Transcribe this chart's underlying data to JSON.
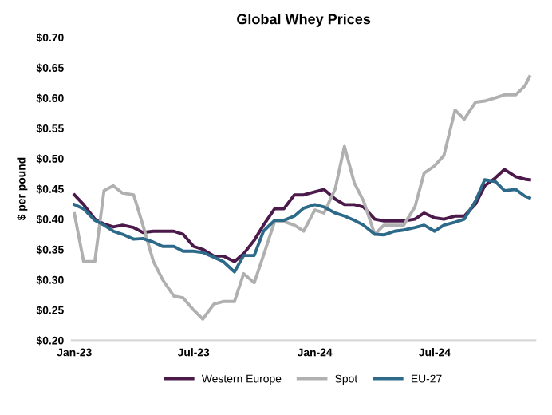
{
  "chart_data": {
    "type": "line",
    "title": "Global Whey Prices",
    "ylabel": "$ per pound",
    "x": [
      "2023-01-01",
      "2023-01-15",
      "2023-02-01",
      "2023-02-15",
      "2023-03-01",
      "2023-03-15",
      "2023-04-01",
      "2023-04-15",
      "2023-05-01",
      "2023-05-15",
      "2023-06-01",
      "2023-06-15",
      "2023-07-01",
      "2023-07-15",
      "2023-08-01",
      "2023-08-15",
      "2023-09-01",
      "2023-09-15",
      "2023-10-01",
      "2023-10-15",
      "2023-11-01",
      "2023-11-15",
      "2023-12-01",
      "2023-12-15",
      "2024-01-01",
      "2024-01-15",
      "2024-02-01",
      "2024-02-15",
      "2024-03-01",
      "2024-03-15",
      "2024-04-01",
      "2024-04-15",
      "2024-05-01",
      "2024-05-15",
      "2024-06-01",
      "2024-06-15",
      "2024-07-01",
      "2024-07-15",
      "2024-08-01",
      "2024-08-15",
      "2024-09-01",
      "2024-09-15",
      "2024-10-01",
      "2024-10-15",
      "2024-11-01",
      "2024-11-15",
      "2024-11-22"
    ],
    "series": [
      {
        "name": "Western Europe",
        "color": "#4b1a4a",
        "values": [
          0.44,
          0.424,
          0.4,
          0.392,
          0.387,
          0.39,
          0.386,
          0.378,
          0.38,
          0.38,
          0.38,
          0.375,
          0.355,
          0.35,
          0.339,
          0.339,
          0.33,
          0.343,
          0.365,
          0.39,
          0.417,
          0.417,
          0.44,
          0.44,
          0.445,
          0.449,
          0.433,
          0.424,
          0.424,
          0.42,
          0.4,
          0.397,
          0.397,
          0.397,
          0.4,
          0.41,
          0.402,
          0.4,
          0.405,
          0.405,
          0.425,
          0.455,
          0.468,
          0.482,
          0.47,
          0.466,
          0.465
        ]
      },
      {
        "name": "Spot",
        "color": "#b0b0b0",
        "values": [
          0.409,
          0.33,
          0.33,
          0.447,
          0.455,
          0.443,
          0.44,
          0.39,
          0.33,
          0.3,
          0.273,
          0.27,
          0.25,
          0.235,
          0.26,
          0.264,
          0.264,
          0.31,
          0.295,
          0.34,
          0.396,
          0.396,
          0.39,
          0.38,
          0.415,
          0.41,
          0.45,
          0.52,
          0.46,
          0.43,
          0.375,
          0.39,
          0.39,
          0.39,
          0.42,
          0.476,
          0.488,
          0.505,
          0.58,
          0.565,
          0.593,
          0.595,
          0.6,
          0.605,
          0.605,
          0.62,
          0.635
        ]
      },
      {
        "name": "EU-27",
        "color": "#2d6a8a",
        "values": [
          0.424,
          0.417,
          0.398,
          0.39,
          0.38,
          0.375,
          0.367,
          0.368,
          0.362,
          0.355,
          0.355,
          0.347,
          0.347,
          0.345,
          0.337,
          0.33,
          0.313,
          0.34,
          0.34,
          0.38,
          0.398,
          0.398,
          0.405,
          0.418,
          0.424,
          0.42,
          0.41,
          0.405,
          0.398,
          0.39,
          0.375,
          0.374,
          0.38,
          0.382,
          0.386,
          0.39,
          0.38,
          0.39,
          0.395,
          0.4,
          0.43,
          0.465,
          0.462,
          0.447,
          0.449,
          0.438,
          0.435
        ]
      }
    ],
    "xlim": [
      "2022-12-28",
      "2024-12-01"
    ],
    "xticks": [
      {
        "value": "2023-01-01",
        "label": "Jan-23"
      },
      {
        "value": "2023-07-01",
        "label": "Jul-23"
      },
      {
        "value": "2024-01-01",
        "label": "Jan-24"
      },
      {
        "value": "2024-07-01",
        "label": "Jul-24"
      }
    ],
    "ylim": [
      0.2,
      0.7
    ],
    "yticks": [
      {
        "value": 0.2,
        "label": "$0.20"
      },
      {
        "value": 0.25,
        "label": "$0.25"
      },
      {
        "value": 0.3,
        "label": "$0.30"
      },
      {
        "value": 0.35,
        "label": "$0.35"
      },
      {
        "value": 0.4,
        "label": "$0.40"
      },
      {
        "value": 0.45,
        "label": "$0.45"
      },
      {
        "value": 0.5,
        "label": "$0.50"
      },
      {
        "value": 0.55,
        "label": "$0.55"
      },
      {
        "value": 0.6,
        "label": "$0.60"
      },
      {
        "value": 0.65,
        "label": "$0.65"
      },
      {
        "value": 0.7,
        "label": "$0.70"
      }
    ],
    "grid": false,
    "legend": "bottom",
    "marker": "none",
    "line_style": "solid"
  }
}
